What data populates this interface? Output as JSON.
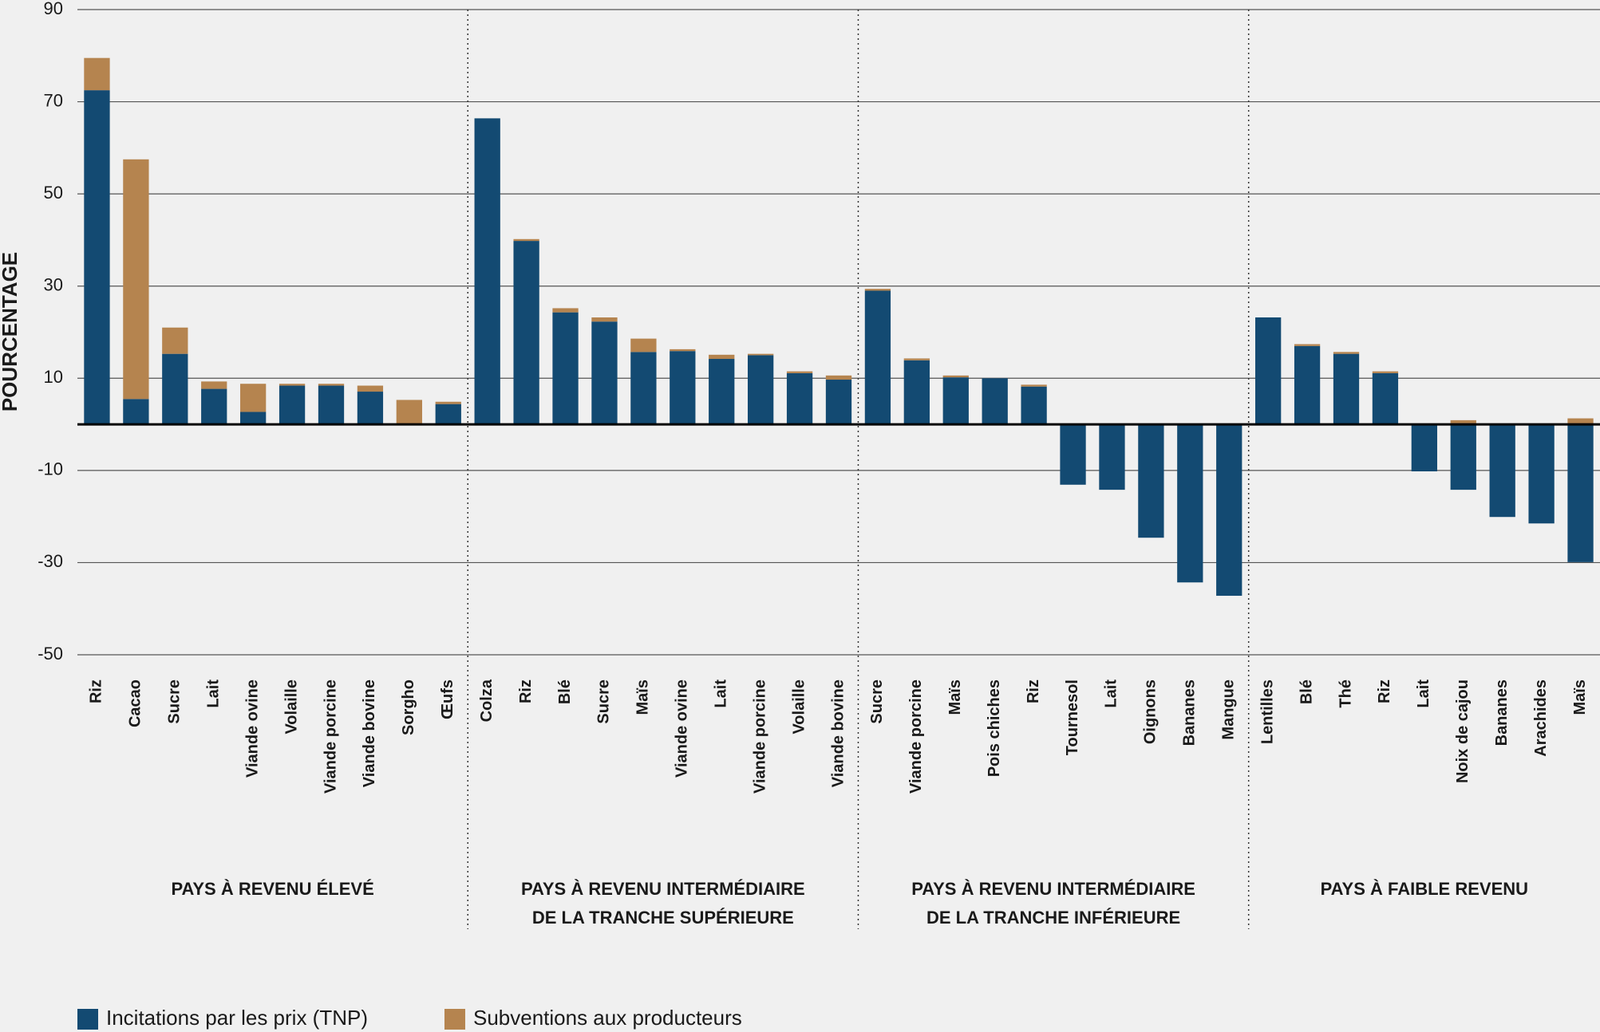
{
  "chart_data": {
    "type": "stacked-bar",
    "y_label": "POURCENTAGE",
    "ylim": [
      -50,
      90
    ],
    "yticks": [
      90,
      70,
      50,
      30,
      10,
      -10,
      -30,
      -50
    ],
    "grid": true,
    "legend": "bottom-left",
    "groups": [
      {
        "label": [
          "PAYS À REVENU ÉLEVÉ"
        ],
        "categories": [
          "Riz",
          "Cacao",
          "Sucre",
          "Lait",
          "Viande ovine",
          "Volaille",
          "Viande porcine",
          "Viande bovine",
          "Sorgho",
          "Œufs"
        ]
      },
      {
        "label": [
          "PAYS À REVENU INTERMÉDIAIRE",
          "DE LA TRANCHE SUPÉRIEURE"
        ],
        "categories": [
          "Colza",
          "Riz",
          "Blé",
          "Sucre",
          "Maïs",
          "Viande ovine",
          "Lait",
          "Viande porcine",
          "Volaille",
          "Viande bovine"
        ]
      },
      {
        "label": [
          "PAYS À REVENU INTERMÉDIAIRE",
          "DE LA TRANCHE INFÉRIEURE"
        ],
        "categories": [
          "Sucre",
          "Viande porcine",
          "Maïs",
          "Pois chiches",
          "Riz",
          "Tournesol",
          "Lait",
          "Oignons",
          "Bananes",
          "Mangue"
        ]
      },
      {
        "label": [
          "PAYS À FAIBLE REVENU"
        ],
        "categories": [
          "Lentilles",
          "Blé",
          "Thé",
          "Riz",
          "Lait",
          "Noix de cajou",
          "Bananes",
          "Arachides",
          "Maïs"
        ]
      }
    ],
    "series": [
      {
        "name": "Incitations par les prix (TNP)",
        "color": "#134a72",
        "values": [
          [
            72.5,
            5.5,
            15.3,
            7.7,
            2.7,
            8.4,
            8.4,
            7.1,
            0,
            4.4
          ],
          [
            66.4,
            39.8,
            24.3,
            22.3,
            15.7,
            15.9,
            14.2,
            15.0,
            11.1,
            9.7
          ],
          [
            29,
            13.9,
            10.2,
            10,
            8.2,
            -13.1,
            -14.2,
            -24.6,
            -34.3,
            -37.2
          ],
          [
            23.2,
            17,
            15.3,
            11.1,
            -10.2,
            -14.2,
            -20.1,
            -21.5,
            -29.9
          ]
        ]
      },
      {
        "name": "Subventions aux producteurs",
        "color": "#b5844f",
        "values": [
          [
            7,
            52,
            5.7,
            1.6,
            6.1,
            0.4,
            0.4,
            1.3,
            5.3,
            0.5
          ],
          [
            0,
            0.4,
            0.9,
            0.9,
            2.9,
            0.4,
            0.9,
            0.3,
            0.4,
            0.9
          ],
          [
            0.4,
            0.4,
            0.4,
            0,
            0.4,
            0,
            0,
            0,
            0,
            0
          ],
          [
            0,
            0.4,
            0.4,
            0.4,
            0,
            0.9,
            0,
            0,
            1.3
          ]
        ]
      }
    ]
  }
}
